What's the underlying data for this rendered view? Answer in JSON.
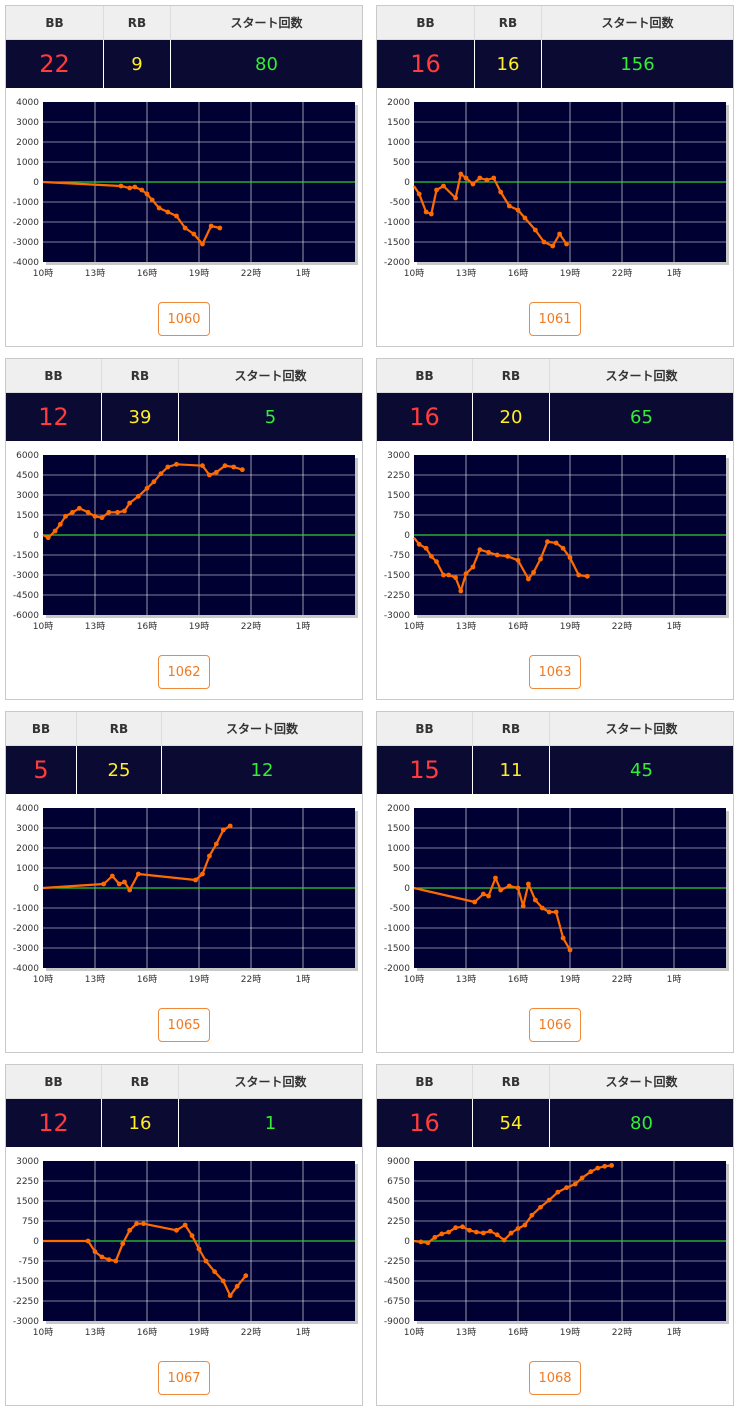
{
  "labels": {
    "bb": "BB",
    "rb": "RB",
    "start": "スタート回数"
  },
  "x_ticks": [
    "10時",
    "13時",
    "16時",
    "19時",
    "22時",
    "1時"
  ],
  "chart_data": [
    {
      "type": "line",
      "machine": "1060",
      "bb": "22",
      "rb": "9",
      "start": "80",
      "ylim": [
        -4000,
        4000
      ],
      "yticks": [
        4000,
        3000,
        2000,
        1000,
        0,
        -1000,
        -2000,
        -3000,
        -4000
      ],
      "x": [
        10,
        14.5,
        15,
        15.3,
        15.7,
        16,
        16.3,
        16.7,
        17.2,
        17.7,
        18.2,
        18.7,
        19.2,
        19.7,
        20.2
      ],
      "y": [
        0,
        -200,
        -300,
        -250,
        -400,
        -600,
        -900,
        -1300,
        -1500,
        -1700,
        -2300,
        -2600,
        -3100,
        -2200,
        -2300
      ]
    },
    {
      "type": "line",
      "machine": "1061",
      "bb": "16",
      "rb": "16",
      "start": "156",
      "ylim": [
        -2000,
        2000
      ],
      "yticks": [
        2000,
        1500,
        1000,
        500,
        0,
        -500,
        -1000,
        -1500,
        -2000
      ],
      "x": [
        10,
        10.3,
        10.7,
        11,
        11.3,
        11.7,
        12.4,
        12.7,
        13,
        13.4,
        13.8,
        14.2,
        14.6,
        15,
        15.5,
        16,
        16.4,
        17,
        17.5,
        18,
        18.4,
        18.8
      ],
      "y": [
        -100,
        -300,
        -750,
        -800,
        -200,
        -100,
        -400,
        200,
        100,
        -50,
        100,
        50,
        100,
        -250,
        -600,
        -700,
        -900,
        -1200,
        -1500,
        -1600,
        -1300,
        -1550
      ]
    },
    {
      "type": "line",
      "machine": "1062",
      "bb": "12",
      "rb": "39",
      "start": "5",
      "ylim": [
        -6000,
        6000
      ],
      "yticks": [
        6000,
        4500,
        3000,
        1500,
        0,
        -1500,
        -3000,
        -4500,
        -6000
      ],
      "x": [
        10,
        10.3,
        10.7,
        11,
        11.3,
        11.7,
        12.1,
        12.6,
        13,
        13.4,
        13.8,
        14.3,
        14.7,
        15,
        15.5,
        16,
        16.4,
        16.8,
        17.2,
        17.7,
        19.2,
        19.6,
        20,
        20.5,
        21,
        21.5
      ],
      "y": [
        0,
        -200,
        300,
        800,
        1400,
        1700,
        2000,
        1700,
        1400,
        1300,
        1700,
        1700,
        1800,
        2400,
        2900,
        3500,
        4000,
        4600,
        5100,
        5300,
        5200,
        4500,
        4700,
        5200,
        5100,
        4900
      ]
    },
    {
      "type": "line",
      "machine": "1063",
      "bb": "16",
      "rb": "20",
      "start": "65",
      "ylim": [
        -3000,
        3000
      ],
      "yticks": [
        3000,
        2250,
        1500,
        750,
        0,
        -750,
        -1500,
        -2250,
        -3000
      ],
      "x": [
        10,
        10.3,
        10.7,
        11,
        11.3,
        11.7,
        12,
        12.4,
        12.7,
        13,
        13.4,
        13.8,
        14.3,
        14.8,
        15.4,
        16,
        16.6,
        16.9,
        17.3,
        17.7,
        18.2,
        18.6,
        19,
        19.5,
        20
      ],
      "y": [
        -100,
        -350,
        -500,
        -800,
        -1000,
        -1500,
        -1500,
        -1600,
        -2100,
        -1450,
        -1200,
        -550,
        -650,
        -750,
        -800,
        -950,
        -1650,
        -1400,
        -900,
        -250,
        -300,
        -500,
        -850,
        -1500,
        -1550
      ]
    },
    {
      "type": "line",
      "machine": "1065",
      "bb": "5",
      "rb": "25",
      "start": "12",
      "ylim": [
        -4000,
        4000
      ],
      "yticks": [
        4000,
        3000,
        2000,
        1000,
        0,
        -1000,
        -2000,
        -3000,
        -4000
      ],
      "x": [
        10,
        13.5,
        14,
        14.4,
        14.7,
        15,
        15.5,
        18.8,
        19.2,
        19.6,
        20,
        20.4,
        20.8
      ],
      "y": [
        0,
        200,
        600,
        200,
        300,
        -100,
        700,
        400,
        700,
        1600,
        2200,
        2900,
        3100
      ]
    },
    {
      "type": "line",
      "machine": "1066",
      "bb": "15",
      "rb": "11",
      "start": "45",
      "ylim": [
        -2000,
        2000
      ],
      "yticks": [
        2000,
        1500,
        1000,
        500,
        0,
        -500,
        -1000,
        -1500,
        -2000
      ],
      "x": [
        10,
        13.5,
        14,
        14.3,
        14.7,
        15,
        15.5,
        16,
        16.3,
        16.6,
        17,
        17.4,
        17.8,
        18.2,
        18.6,
        19
      ],
      "y": [
        0,
        -350,
        -150,
        -200,
        250,
        -50,
        50,
        0,
        -450,
        100,
        -300,
        -500,
        -600,
        -600,
        -1250,
        -1550
      ]
    },
    {
      "type": "line",
      "machine": "1067",
      "bb": "12",
      "rb": "16",
      "start": "1",
      "ylim": [
        -3000,
        3000
      ],
      "yticks": [
        3000,
        2250,
        1500,
        750,
        0,
        -750,
        -1500,
        -2250,
        -3000
      ],
      "x": [
        10,
        12.6,
        13,
        13.4,
        13.8,
        14.2,
        14.6,
        15,
        15.4,
        15.8,
        17.7,
        18.2,
        18.6,
        19,
        19.4,
        19.9,
        20.4,
        20.8,
        21.2,
        21.7
      ],
      "y": [
        0,
        0,
        -400,
        -600,
        -700,
        -750,
        -100,
        400,
        650,
        650,
        400,
        600,
        200,
        -300,
        -750,
        -1150,
        -1500,
        -2050,
        -1700,
        -1300
      ]
    },
    {
      "type": "line",
      "machine": "1068",
      "bb": "16",
      "rb": "54",
      "start": "80",
      "ylim": [
        -9000,
        9000
      ],
      "yticks": [
        9000,
        6750,
        4500,
        2250,
        0,
        -2250,
        -4500,
        -6750,
        -9000
      ],
      "x": [
        10,
        10.4,
        10.8,
        11.2,
        11.6,
        12,
        12.4,
        12.8,
        13.2,
        13.6,
        14,
        14.4,
        14.8,
        15.2,
        15.6,
        16,
        16.4,
        16.8,
        17.3,
        17.8,
        18.3,
        18.8,
        19.3,
        19.7,
        20.2,
        20.6,
        21,
        21.4
      ],
      "y": [
        0,
        -100,
        -200,
        400,
        800,
        1000,
        1500,
        1600,
        1200,
        1000,
        900,
        1100,
        700,
        100,
        900,
        1400,
        1800,
        2900,
        3800,
        4600,
        5500,
        6000,
        6400,
        7100,
        7800,
        8200,
        8400,
        8500
      ]
    }
  ]
}
